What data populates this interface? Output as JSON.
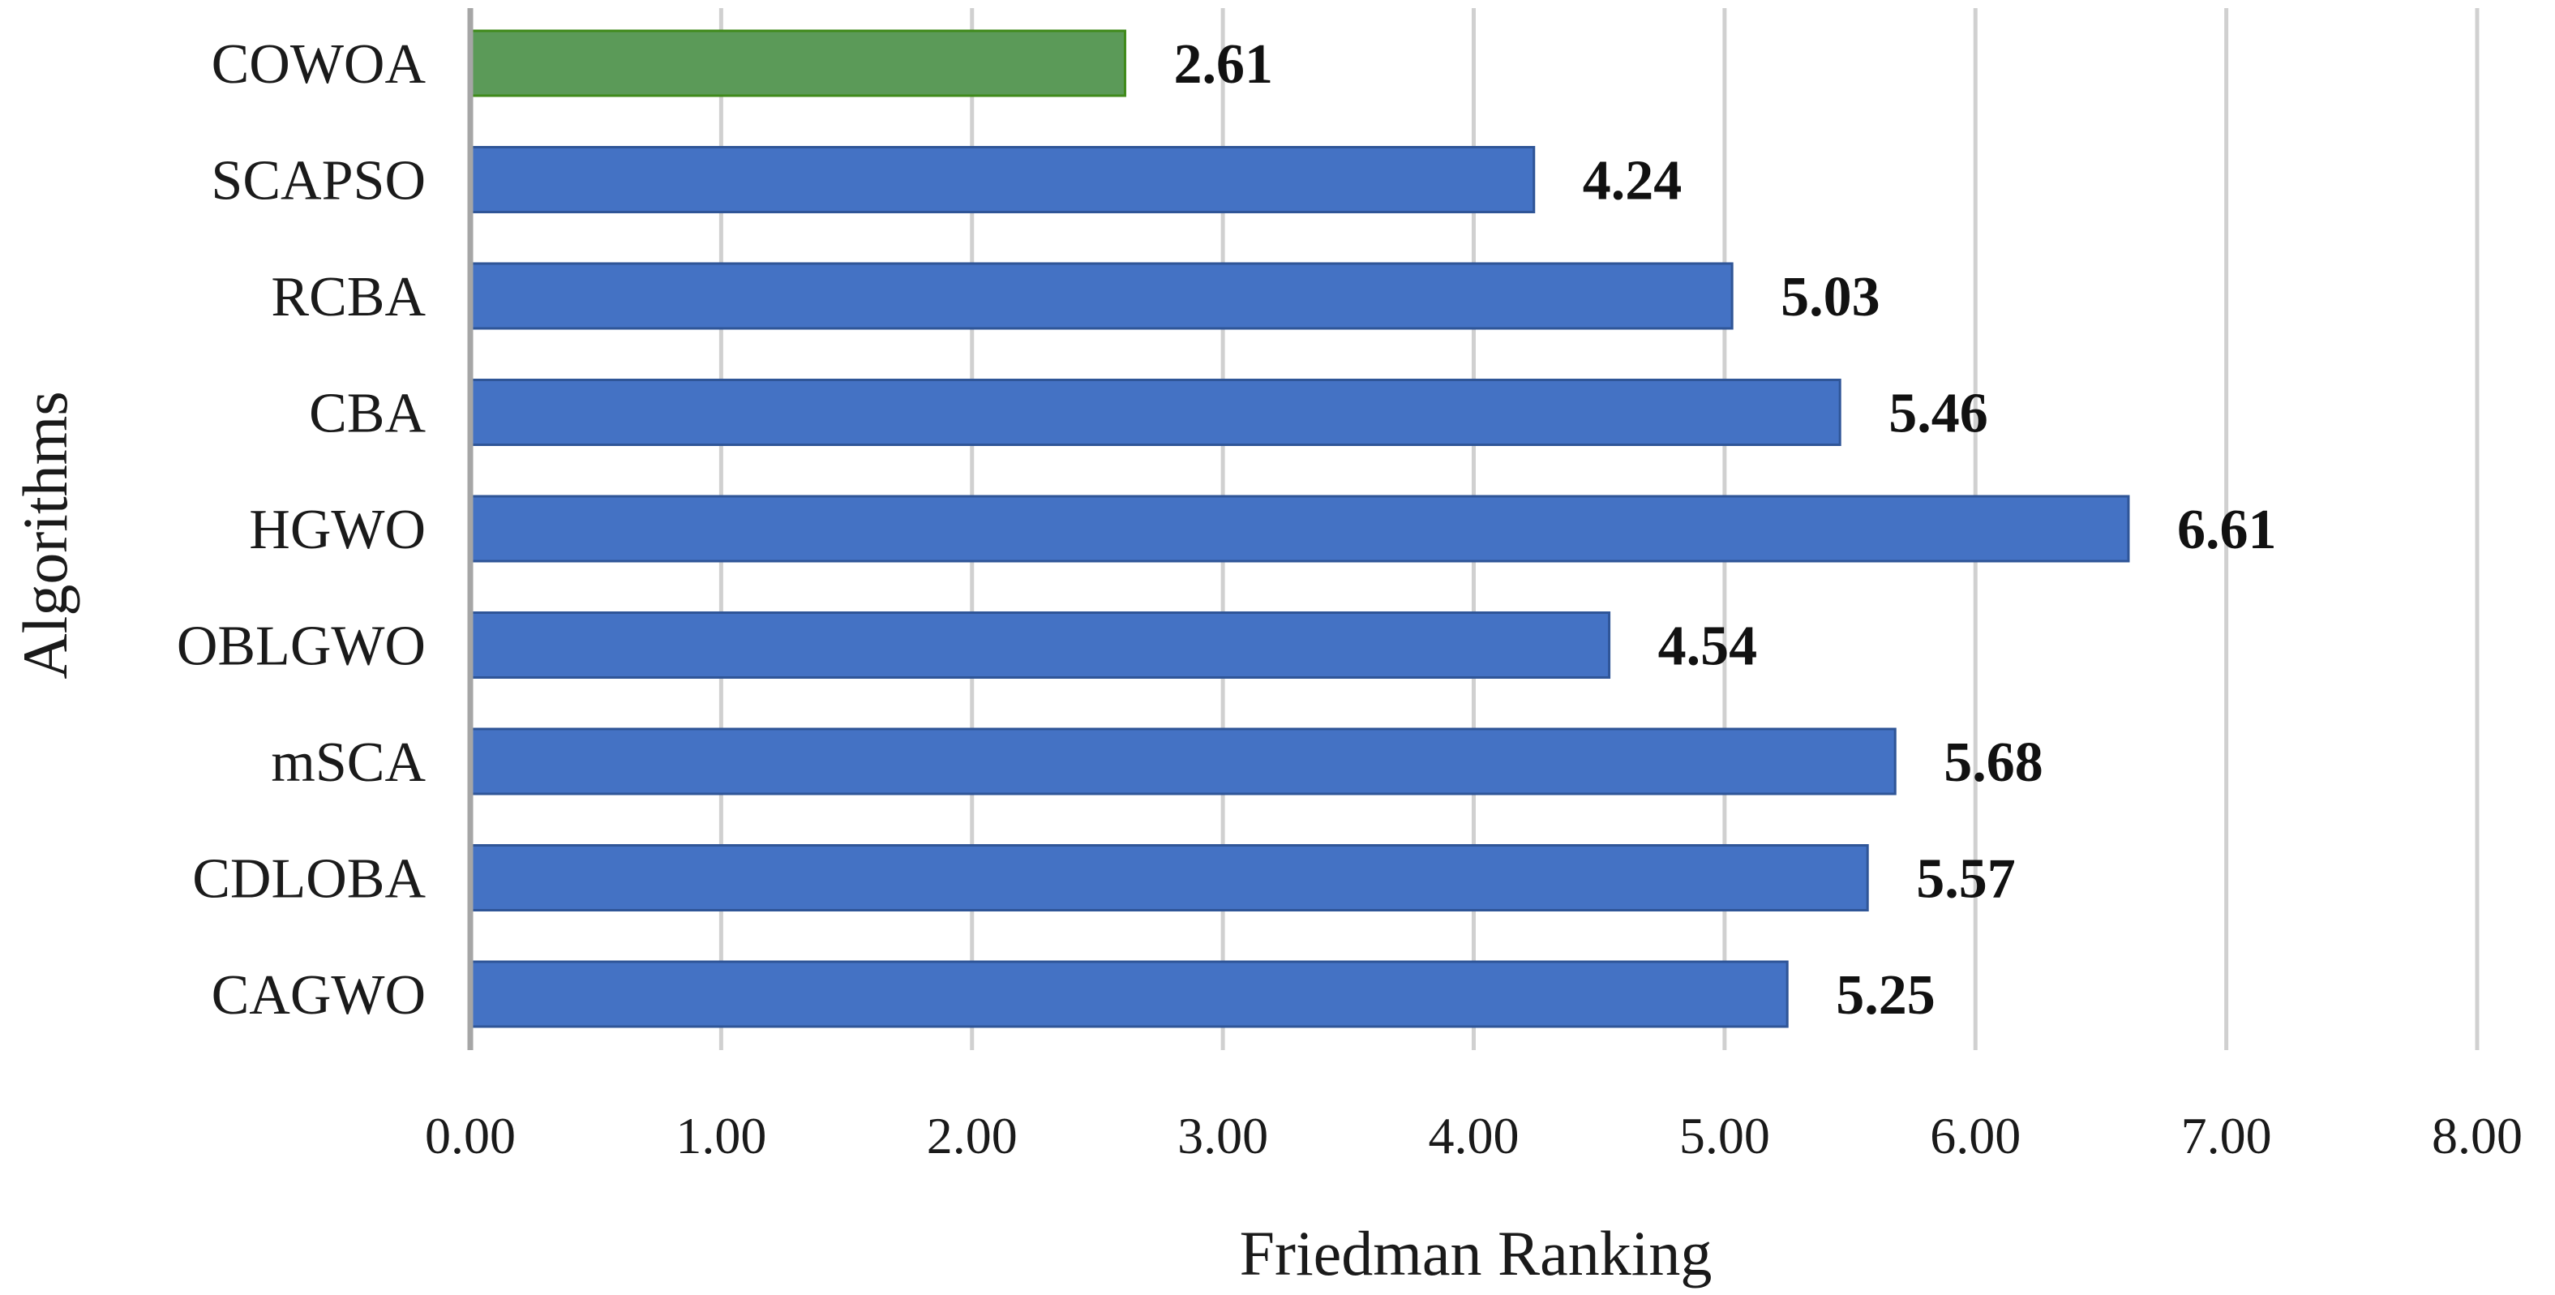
{
  "chart_data": {
    "type": "bar",
    "orientation": "horizontal",
    "categories": [
      "COWOA",
      "SCAPSO",
      "RCBA",
      "CBA",
      "HGWO",
      "OBLGWO",
      "mSCA",
      "CDLOBA",
      "CAGWO"
    ],
    "values": [
      2.61,
      4.24,
      5.03,
      5.46,
      6.61,
      4.54,
      5.68,
      5.57,
      5.25
    ],
    "data_labels": [
      "2.61",
      "4.24",
      "5.03",
      "5.46",
      "6.61",
      "4.54",
      "5.68",
      "5.57",
      "5.25"
    ],
    "title": "",
    "xlabel": "Friedman Ranking",
    "ylabel": "Algorithms",
    "xlim": [
      0,
      8
    ],
    "x_ticks": [
      0,
      1,
      2,
      3,
      4,
      5,
      6,
      7,
      8
    ],
    "x_tick_labels": [
      "0.00",
      "1.00",
      "2.00",
      "3.00",
      "4.00",
      "5.00",
      "6.00",
      "7.00",
      "8.00"
    ],
    "grid": "vertical",
    "legend": "none",
    "colors": {
      "default_bar": "#4472c4",
      "default_bar_edge": "#2f5597",
      "highlight_bar": "#5b9a58",
      "highlight_bar_edge": "#3f8a1a",
      "gridline": "#d0d0d0",
      "axis": "#a6a6a6"
    },
    "highlight_category": "COWOA"
  }
}
